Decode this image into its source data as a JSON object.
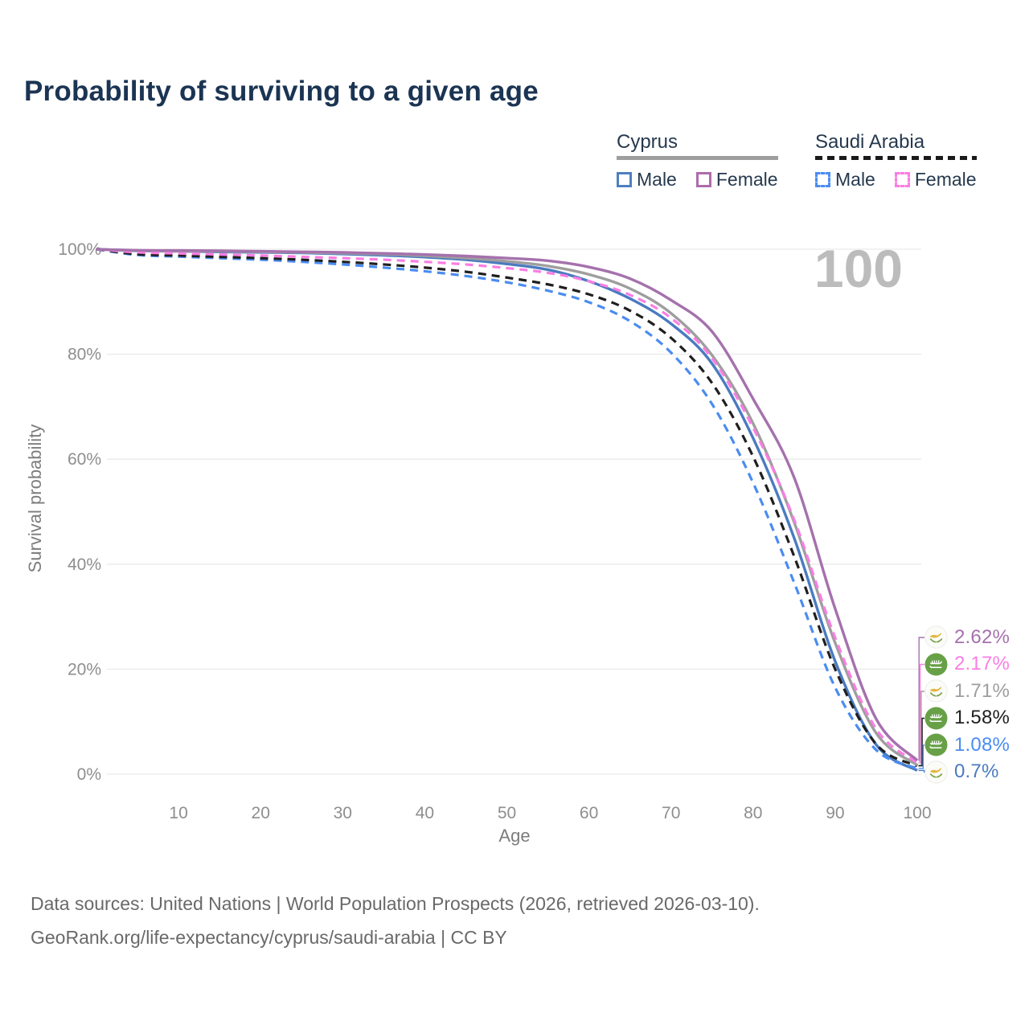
{
  "title": "Probability of surviving to a given age",
  "legend": {
    "groups": [
      {
        "name": "Cyprus",
        "line_style": "solid",
        "underline_color": "#9e9e9e",
        "items": [
          {
            "label": "Male",
            "color": "#4e7fc1"
          },
          {
            "label": "Female",
            "color": "#ad6cad"
          }
        ]
      },
      {
        "name": "Saudi Arabia",
        "line_style": "dashed",
        "underline_color": "#1a1a1a",
        "items": [
          {
            "label": "Male",
            "color": "#4a8cf1"
          },
          {
            "label": "Female",
            "color": "#fb7de4"
          }
        ]
      }
    ]
  },
  "chart_data": {
    "type": "line",
    "title": "Probability of surviving to a given age",
    "xlabel": "Age",
    "ylabel": "Survival probability",
    "xlim": [
      0,
      100
    ],
    "ylim": [
      0,
      100
    ],
    "grid": "horizontal",
    "legend_position": "top-right",
    "frame_label": "100",
    "x_ticks": [
      10,
      20,
      30,
      40,
      50,
      60,
      70,
      80,
      90,
      100
    ],
    "y_ticks": [
      0,
      20,
      40,
      60,
      80,
      100
    ],
    "y_tick_suffix": "%",
    "x": [
      0,
      5,
      10,
      15,
      20,
      25,
      30,
      35,
      40,
      45,
      50,
      55,
      60,
      65,
      70,
      75,
      80,
      85,
      90,
      95,
      100
    ],
    "series": [
      {
        "name": "Cyprus Female",
        "country": "Cyprus",
        "sex": "Female",
        "icon": "cyprus-flag-icon",
        "flag": "cyprus",
        "color": "#a571ad",
        "dash": false,
        "end_label": "2.62%",
        "values": [
          100,
          99.8,
          99.75,
          99.7,
          99.6,
          99.5,
          99.4,
          99.2,
          99.0,
          98.7,
          98.3,
          97.8,
          96.6,
          94.4,
          90.3,
          84.3,
          71.5,
          56.5,
          31.5,
          10.5,
          2.62
        ]
      },
      {
        "name": "Saudi Arabia Female",
        "country": "Saudi Arabia",
        "sex": "Female",
        "icon": "saudi-arabia-flag-icon",
        "flag": "saudi",
        "color": "#fb7de4",
        "dash": true,
        "end_label": "2.17%",
        "values": [
          100,
          99.4,
          99.2,
          99.0,
          98.8,
          98.55,
          98.3,
          98.0,
          97.6,
          97.1,
          96.4,
          95.5,
          93.9,
          91.3,
          86.9,
          79.2,
          66.0,
          48.5,
          26.0,
          8.6,
          2.17
        ]
      },
      {
        "name": "Cyprus Total",
        "country": "Cyprus",
        "sex": "Both",
        "icon": "cyprus-flag-icon",
        "flag": "cyprus",
        "color": "#9e9e9e",
        "dash": false,
        "end_label": "1.71%",
        "values": [
          100,
          99.7,
          99.65,
          99.6,
          99.5,
          99.4,
          99.25,
          99.05,
          98.75,
          98.3,
          97.7,
          96.8,
          95.2,
          92.5,
          87.8,
          79.8,
          66.8,
          48.0,
          25.0,
          7.8,
          1.71
        ]
      },
      {
        "name": "Saudi Arabia Total",
        "country": "Saudi Arabia",
        "sex": "Both",
        "icon": "saudi-arabia-flag-icon",
        "flag": "saudi",
        "color": "#1f1f1f",
        "dash": true,
        "end_label": "1.58%",
        "values": [
          100,
          99.05,
          98.8,
          98.55,
          98.3,
          98.0,
          97.6,
          97.1,
          96.5,
          95.7,
          94.6,
          93.3,
          91.4,
          88.3,
          83.1,
          74.5,
          60.5,
          41.5,
          20.0,
          5.7,
          1.58
        ]
      },
      {
        "name": "Saudi Arabia Male",
        "country": "Saudi Arabia",
        "sex": "Male",
        "icon": "saudi-arabia-flag-icon",
        "flag": "saudi",
        "color": "#4a8cf1",
        "dash": true,
        "end_label": "1.08%",
        "values": [
          100,
          98.9,
          98.6,
          98.3,
          98.0,
          97.6,
          97.1,
          96.5,
          95.8,
          94.9,
          93.7,
          92.1,
          89.9,
          86.3,
          80.3,
          70.5,
          55.5,
          36.5,
          16.5,
          4.6,
          1.08
        ]
      },
      {
        "name": "Cyprus Male",
        "country": "Cyprus",
        "sex": "Male",
        "icon": "cyprus-flag-icon",
        "flag": "cyprus",
        "color": "#4a7bc0",
        "dash": false,
        "end_label": "0.7%",
        "values": [
          100,
          99.7,
          99.6,
          99.5,
          99.4,
          99.3,
          99.1,
          98.85,
          98.5,
          98.0,
          97.2,
          96.1,
          93.9,
          90.6,
          85.8,
          78.2,
          64.0,
          45.0,
          21.5,
          5.6,
          0.7
        ]
      }
    ]
  },
  "footer": {
    "line1": "Data sources: United Nations | World Population Prospects (2026, retrieved 2026-03-10).",
    "line2": "GeoRank.org/life-expectancy/cyprus/saudi-arabia | CC BY"
  }
}
